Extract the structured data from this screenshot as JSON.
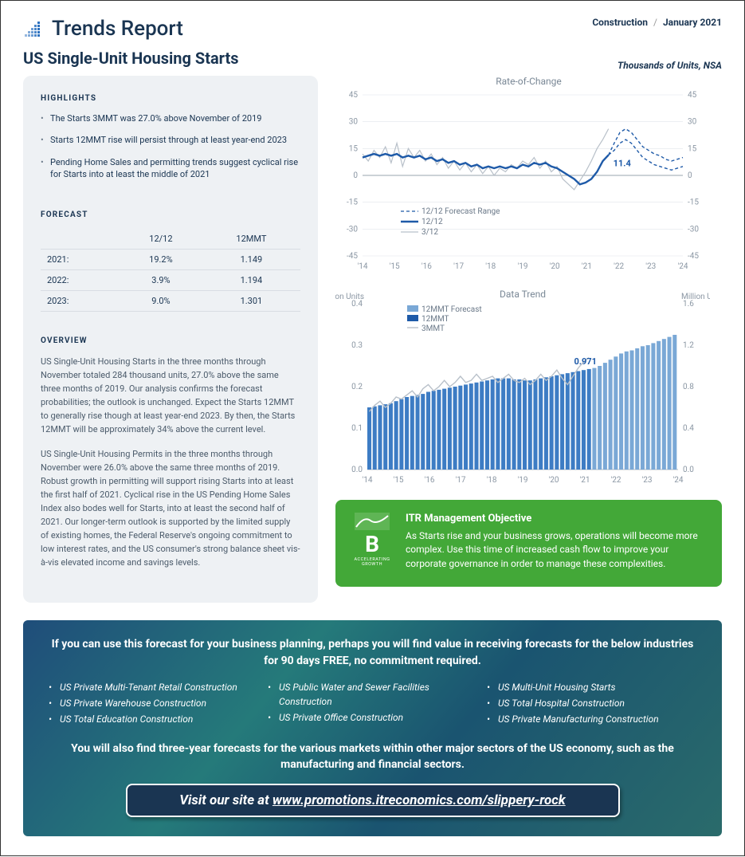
{
  "header": {
    "report_name": "Trends Report",
    "category": "Construction",
    "date": "January 2021",
    "logo_color": "#0a4a8a"
  },
  "page": {
    "title": "US Single-Unit Housing Starts",
    "subtitle": "Thousands of Units, NSA"
  },
  "highlights": {
    "heading": "HIGHLIGHTS",
    "items": [
      "The Starts 3MMT was 27.0% above November of 2019",
      "Starts 12MMT rise will persist through at least year-end 2023",
      "Pending Home Sales and permitting trends suggest cyclical rise for Starts into at least the middle of 2021"
    ]
  },
  "forecast": {
    "heading": "FORECAST",
    "columns": [
      "",
      "12/12",
      "12MMT"
    ],
    "rows": [
      [
        "2021:",
        "19.2%",
        "1.149"
      ],
      [
        "2022:",
        "3.9%",
        "1.194"
      ],
      [
        "2023:",
        "9.0%",
        "1.301"
      ]
    ]
  },
  "overview": {
    "heading": "OVERVIEW",
    "paragraphs": [
      "US Single-Unit Housing Starts in the three months through November totaled 284 thousand units, 27.0% above the same three months of 2019. Our analysis confirms the forecast probabilities; the outlook is unchanged. Expect the Starts 12MMT to generally rise though at least year-end 2023. By then, the Starts 12MMT will be approximately 34% above the current level.",
      "US Single-Unit Housing Permits in the three months through November were 26.0% above the same three months of 2019. Robust growth in permitting will support rising Starts into at least the first half of 2021. Cyclical rise in the US Pending Home Sales Index also bodes well for Starts, into at least the second half of 2021. Our longer-term outlook is supported by the limited supply of existing homes, the Federal Reserve's ongoing commitment to low interest rates, and the US consumer's strong balance sheet vis-à-vis elevated income and savings levels."
    ]
  },
  "chart_roc": {
    "type": "line",
    "title": "Rate-of-Change",
    "ylim": [
      -45,
      45
    ],
    "ytick_step": 15,
    "x_labels": [
      "'14",
      "'15",
      "'16",
      "'17",
      "'18",
      "'19",
      "'20",
      "'21",
      "'22",
      "'23",
      "'24"
    ],
    "annotation": {
      "value": "11.4",
      "color": "#1e5aa8"
    },
    "legend": [
      {
        "label": "12/12 Forecast Range",
        "color": "#1e5aa8",
        "style": "dashed"
      },
      {
        "label": "12/12",
        "color": "#1e5aa8",
        "style": "solid-thick"
      },
      {
        "label": "3/12",
        "color": "#b8c0c9",
        "style": "solid"
      }
    ],
    "series_3_12": {
      "color": "#b8c0c9",
      "width": 1.2,
      "data": [
        12,
        8,
        14,
        10,
        16,
        7,
        18,
        5,
        15,
        10,
        14,
        8,
        12,
        6,
        10,
        4,
        8,
        3,
        7,
        2,
        6,
        1,
        5,
        0,
        4,
        2,
        6,
        4,
        8,
        6,
        10,
        4,
        8,
        2,
        5,
        -2,
        -5,
        -8,
        -3,
        2,
        8,
        15,
        20,
        26
      ]
    },
    "series_12_12": {
      "color": "#1e5aa8",
      "width": 2.4,
      "data": [
        10,
        11,
        12,
        11,
        12,
        11,
        12,
        10,
        11,
        10,
        11,
        9,
        10,
        8,
        9,
        7,
        8,
        6,
        7,
        5,
        6,
        4,
        5,
        4,
        5,
        4,
        5,
        4,
        6,
        5,
        7,
        6,
        7,
        5,
        4,
        2,
        0,
        -2,
        -5,
        -4,
        -2,
        2,
        8,
        11.4
      ]
    },
    "series_forecast_upper": {
      "color": "#1e5aa8",
      "dash": "4,3",
      "width": 1.4,
      "start_idx": 43,
      "data": [
        11.4,
        18,
        24,
        26,
        24,
        20,
        16,
        14,
        12,
        11,
        9,
        8,
        9,
        10
      ]
    },
    "series_forecast_lower": {
      "color": "#1e5aa8",
      "dash": "4,3",
      "width": 1.4,
      "start_idx": 43,
      "data": [
        11.4,
        14,
        18,
        20,
        18,
        14,
        10,
        8,
        6,
        5,
        4,
        3,
        4,
        5
      ]
    },
    "background_color": "#ffffff",
    "grid_color": "#e0e5ea",
    "label_fontsize": 10
  },
  "chart_trend": {
    "type": "bar+line",
    "title": "Data Trend",
    "left_axis_label": "Million Units",
    "right_axis_label": "Million Units",
    "left_ylim": [
      0.0,
      0.4
    ],
    "left_ytick_step": 0.1,
    "right_ylim": [
      0.0,
      1.6
    ],
    "right_ytick_step": 0.4,
    "x_labels": [
      "'14",
      "'15",
      "'16",
      "'17",
      "'18",
      "'19",
      "'20",
      "'21",
      "'22",
      "'23",
      "'24"
    ],
    "annotation": {
      "value": "0.971",
      "color": "#1e5aa8"
    },
    "legend": [
      {
        "label": "12MMT Forecast",
        "color": "#7aa8d6",
        "style": "bar"
      },
      {
        "label": "12MMT",
        "color": "#1e5aa8",
        "style": "bar"
      },
      {
        "label": "3MMT",
        "color": "#b8c0c9",
        "style": "line"
      }
    ],
    "bars_12mmt": {
      "color": "#3d7cc4",
      "data": [
        0.6,
        0.61,
        0.62,
        0.63,
        0.64,
        0.66,
        0.68,
        0.7,
        0.71,
        0.72,
        0.73,
        0.75,
        0.76,
        0.77,
        0.78,
        0.79,
        0.8,
        0.81,
        0.82,
        0.83,
        0.84,
        0.85,
        0.86,
        0.87,
        0.88,
        0.88,
        0.88,
        0.87,
        0.87,
        0.86,
        0.86,
        0.87,
        0.88,
        0.89,
        0.9,
        0.91,
        0.92,
        0.93,
        0.94,
        0.95,
        0.96,
        0.97
      ]
    },
    "bars_forecast": {
      "color": "#7aa8d6",
      "data": [
        0.98,
        1.0,
        1.03,
        1.06,
        1.09,
        1.12,
        1.14,
        1.15,
        1.17,
        1.19,
        1.2,
        1.22,
        1.24,
        1.26,
        1.28,
        1.3
      ]
    },
    "line_3mmt": {
      "color": "#b8c0c9",
      "width": 1.4,
      "data": [
        0.56,
        0.62,
        0.66,
        0.6,
        0.64,
        0.7,
        0.68,
        0.72,
        0.76,
        0.7,
        0.78,
        0.82,
        0.76,
        0.8,
        0.86,
        0.8,
        0.84,
        0.9,
        0.84,
        0.86,
        0.92,
        0.86,
        0.88,
        0.9,
        0.84,
        0.88,
        0.92,
        0.86,
        0.84,
        0.88,
        0.82,
        0.86,
        0.92,
        0.86,
        0.9,
        0.96,
        0.88,
        0.82,
        0.9,
        0.98,
        1.04,
        1.08
      ]
    },
    "background_color": "#ffffff",
    "grid_color": "#e0e5ea",
    "bar_width": 0.75
  },
  "mgmt": {
    "badge_letter": "B",
    "badge_sub": "ACCELERATING GROWTH",
    "title": "ITR Management Objective",
    "body": "As Starts rise and your business grows, operations will become more complex. Use this time of increased cash flow to improve your corporate governance in order to manage these complexities.",
    "bg_color": "#43a838"
  },
  "promo": {
    "lead": "If you can use this forecast for your business planning, perhaps you will find value in receiving forecasts for the below industries for 90 days FREE, no commitment required.",
    "col1": [
      "US Private Multi-Tenant Retail Construction",
      "US Private Warehouse Construction",
      "US Total Education Construction"
    ],
    "col2": [
      "US Public Water and Sewer Facilities Construction",
      "US Private Office Construction"
    ],
    "col3": [
      "US Multi-Unit Housing Starts",
      "US Total Hospital Construction",
      "US Private Manufacturing Construction"
    ],
    "sub": "You will also find three-year forecasts for the various markets within other major sectors of the US economy, such as the manufacturing and financial sectors.",
    "cta_prefix": "Visit our site at ",
    "cta_url": "www.promotions.itreconomics.com/slippery-rock"
  }
}
